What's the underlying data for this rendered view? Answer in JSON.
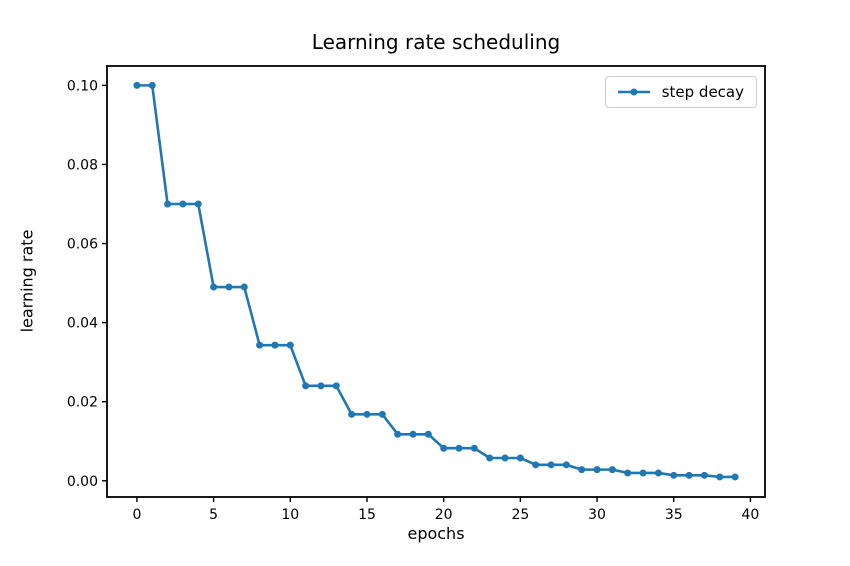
{
  "figure": {
    "title": "Learning rate scheduling",
    "xlabel": "epochs",
    "ylabel": "learning rate"
  },
  "legend": {
    "label": "step decay"
  },
  "colors": {
    "series": "#1f77b4",
    "spine": "#000000",
    "legend_border": "#cccccc",
    "background": "#ffffff"
  },
  "chart_data": {
    "type": "line",
    "title": "Learning rate scheduling",
    "xlabel": "epochs",
    "ylabel": "learning rate",
    "legend_position": "upper right",
    "grid": false,
    "xlim": [
      -1.95,
      40.95
    ],
    "ylim": [
      -0.0041,
      0.1049
    ],
    "xticks": [
      0,
      5,
      10,
      15,
      20,
      25,
      30,
      35,
      40
    ],
    "xtick_labels": [
      "0",
      "5",
      "10",
      "15",
      "20",
      "25",
      "30",
      "35",
      "40"
    ],
    "yticks": [
      0.0,
      0.02,
      0.04,
      0.06,
      0.08,
      0.1
    ],
    "ytick_labels": [
      "0.00",
      "0.02",
      "0.04",
      "0.06",
      "0.08",
      "0.10"
    ],
    "series": [
      {
        "name": "step decay",
        "color": "#1f77b4",
        "marker": "circle",
        "x": [
          0,
          1,
          2,
          3,
          4,
          5,
          6,
          7,
          8,
          9,
          10,
          11,
          12,
          13,
          14,
          15,
          16,
          17,
          18,
          19,
          20,
          21,
          22,
          23,
          24,
          25,
          26,
          27,
          28,
          29,
          30,
          31,
          32,
          33,
          34,
          35,
          36,
          37,
          38,
          39
        ],
        "y": [
          0.1,
          0.1,
          0.07,
          0.07,
          0.07,
          0.049,
          0.049,
          0.049,
          0.0343,
          0.0343,
          0.0343,
          0.02401,
          0.02401,
          0.02401,
          0.016807,
          0.016807,
          0.016807,
          0.0117649,
          0.0117649,
          0.0117649,
          0.0082354,
          0.0082354,
          0.0082354,
          0.0057648,
          0.0057648,
          0.0057648,
          0.0040354,
          0.0040354,
          0.0040354,
          0.0028248,
          0.0028248,
          0.0028248,
          0.0019773,
          0.0019773,
          0.0019773,
          0.0013841,
          0.0013841,
          0.0013841,
          0.0009689,
          0.0009689
        ]
      }
    ]
  }
}
